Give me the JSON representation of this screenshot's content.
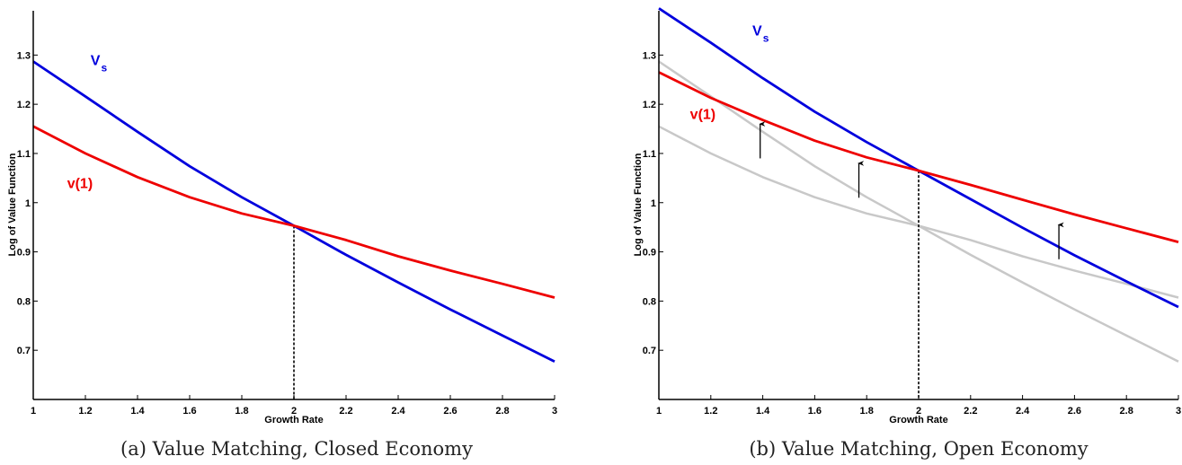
{
  "chart_data": [
    {
      "type": "line",
      "caption": "(a) Value Matching, Closed Economy",
      "xlabel": "Growth Rate",
      "ylabel": "Log of Value Function",
      "xlim": [
        1,
        3
      ],
      "ylim": [
        0.6,
        1.39
      ],
      "xticks": [
        "1",
        "1.2",
        "1.4",
        "1.6",
        "1.8",
        "2",
        "2.2",
        "2.4",
        "2.6",
        "2.8",
        "3"
      ],
      "yticks": [
        "0.7",
        "0.8",
        "0.9",
        "1",
        "1.1",
        "1.2",
        "1.3"
      ],
      "grid": false,
      "series": [
        {
          "name": "V_s",
          "label_main": "V",
          "label_sub": "s",
          "color": "#0000dd",
          "x": [
            1,
            1.2,
            1.4,
            1.6,
            1.8,
            2,
            2.2,
            2.4,
            2.6,
            2.8,
            3
          ],
          "y": [
            1.287,
            1.216,
            1.144,
            1.074,
            1.011,
            0.953,
            0.894,
            0.838,
            0.783,
            0.73,
            0.677
          ]
        },
        {
          "name": "v(1)",
          "label_main": "v(1)",
          "color": "#ee0000",
          "x": [
            1,
            1.2,
            1.4,
            1.6,
            1.8,
            2,
            2.2,
            2.4,
            2.6,
            2.8,
            3
          ],
          "y": [
            1.155,
            1.1,
            1.052,
            1.011,
            0.978,
            0.953,
            0.924,
            0.891,
            0.862,
            0.835,
            0.807
          ]
        }
      ],
      "annotations": [
        {
          "type": "vline_dotted",
          "x": 2,
          "y_top": 0.953
        }
      ],
      "label_positions": [
        {
          "series": "V_s",
          "x": 1.22,
          "y": 1.28
        },
        {
          "series": "v(1)",
          "x": 1.13,
          "y": 1.03
        }
      ]
    },
    {
      "type": "line",
      "caption": "(b) Value Matching, Open Economy",
      "xlabel": "Growth Rate",
      "ylabel": "Log of Value Function",
      "xlim": [
        1,
        3
      ],
      "ylim": [
        0.6,
        1.39
      ],
      "xticks": [
        "1",
        "1.2",
        "1.4",
        "1.6",
        "1.8",
        "2",
        "2.2",
        "2.4",
        "2.6",
        "2.8",
        "3"
      ],
      "yticks": [
        "0.7",
        "0.8",
        "0.9",
        "1",
        "1.1",
        "1.2",
        "1.3"
      ],
      "grid": false,
      "series": [
        {
          "name": "V_s (closed economy)",
          "color": "#c8c8c8",
          "unlabeled": true,
          "x": [
            1,
            1.2,
            1.4,
            1.6,
            1.8,
            2,
            2.2,
            2.4,
            2.6,
            2.8,
            3
          ],
          "y": [
            1.287,
            1.216,
            1.144,
            1.074,
            1.011,
            0.953,
            0.894,
            0.838,
            0.783,
            0.73,
            0.677
          ]
        },
        {
          "name": "v(1) (closed economy)",
          "color": "#c8c8c8",
          "unlabeled": true,
          "x": [
            1,
            1.2,
            1.4,
            1.6,
            1.8,
            2,
            2.2,
            2.4,
            2.6,
            2.8,
            3
          ],
          "y": [
            1.155,
            1.1,
            1.052,
            1.011,
            0.978,
            0.953,
            0.924,
            0.891,
            0.862,
            0.835,
            0.807
          ]
        },
        {
          "name": "V_s",
          "label_main": "V",
          "label_sub": "s",
          "color": "#0000dd",
          "x": [
            1,
            1.2,
            1.4,
            1.6,
            1.8,
            2,
            2.2,
            2.4,
            2.6,
            2.8,
            3
          ],
          "y": [
            1.395,
            1.325,
            1.253,
            1.185,
            1.123,
            1.065,
            1.007,
            0.949,
            0.893,
            0.84,
            0.788
          ]
        },
        {
          "name": "v(1)",
          "label_main": "v(1)",
          "color": "#ee0000",
          "x": [
            1,
            1.2,
            1.4,
            1.6,
            1.8,
            2,
            2.2,
            2.4,
            2.6,
            2.8,
            3
          ],
          "y": [
            1.265,
            1.213,
            1.168,
            1.126,
            1.092,
            1.065,
            1.036,
            1.006,
            0.976,
            0.948,
            0.92
          ]
        }
      ],
      "annotations": [
        {
          "type": "vline_dotted",
          "x": 2,
          "y_top": 1.065
        },
        {
          "type": "arrow",
          "x": 1.39,
          "y_from": 1.09,
          "y_to": 1.16
        },
        {
          "type": "arrow",
          "x": 1.77,
          "y_from": 1.01,
          "y_to": 1.08
        },
        {
          "type": "arrow",
          "x": 2.54,
          "y_from": 0.885,
          "y_to": 0.955
        }
      ],
      "label_positions": [
        {
          "series": "V_s",
          "x": 1.36,
          "y": 1.34
        },
        {
          "series": "v(1)",
          "x": 1.12,
          "y": 1.17
        }
      ]
    }
  ]
}
